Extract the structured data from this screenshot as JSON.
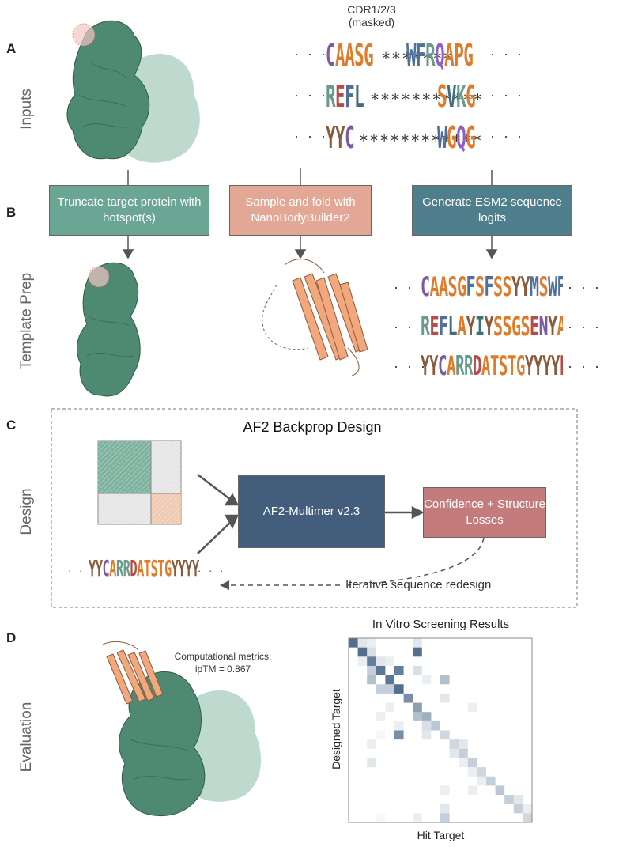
{
  "panels": {
    "a": "A",
    "b": "B",
    "c": "C",
    "d": "D"
  },
  "row_labels": {
    "inputs": "Inputs",
    "template": "Template Prep",
    "design": "Design",
    "evaluation": "Evaluation"
  },
  "cdr_label": {
    "line1": "CDR1/2/3",
    "line2": "(masked)"
  },
  "input_sequences": [
    {
      "left": "CAASG",
      "stars": "*******",
      "right": "WFRQAPG"
    },
    {
      "left": "REFL",
      "stars": "***********",
      "right": "SVKG"
    },
    {
      "left": "YYC",
      "stars": "************",
      "right": "WGQG"
    }
  ],
  "ellipsis": "· · ·",
  "steps": [
    {
      "label": "Truncate target protein with hotspot(s)",
      "color": "#6aa693"
    },
    {
      "label": "Sample and fold with NanoBodyBuilder2",
      "color": "#e3a796"
    },
    {
      "label": "Generate ESM2 sequence logits",
      "color": "#4f7f8c"
    }
  ],
  "logit_sequences": [
    "CAASGFSFSSYYMSWFRQAPG",
    "REFLAYIYSSGSENYADSVKG",
    "YYCARRDATSTGYYYYEVWGQG"
  ],
  "design": {
    "title": "AF2 Backprop Design",
    "model_label": "AF2-Multimer v2.3",
    "loss_label": "Confidence + Structure Losses",
    "redesign_label": "Iterative sequence redesign",
    "bottom_seq": "YYCARRDATSTGYYYYEVWGQG",
    "colors": {
      "model": "#435e7c",
      "loss": "#c47b7b"
    }
  },
  "evaluation": {
    "metrics_line1": "Computational metrics:",
    "metrics_line2": "ipTM = 0.867",
    "heatmap_title": "In Vitro Screening Results",
    "xlabel": "Hit Target",
    "ylabel": "Designed Target"
  },
  "chart_data": {
    "type": "heatmap",
    "title": "In Vitro Screening Results",
    "xlabel": "Hit Target",
    "ylabel": "Designed Target",
    "rows": 20,
    "cols": 20,
    "cells": [
      [
        0,
        0,
        0.9
      ],
      [
        0,
        1,
        0.15
      ],
      [
        0,
        2,
        0.1
      ],
      [
        0,
        7,
        0.15
      ],
      [
        1,
        1,
        0.9
      ],
      [
        1,
        2,
        0.2
      ],
      [
        1,
        7,
        0.9
      ],
      [
        2,
        2,
        0.8
      ],
      [
        2,
        1,
        0.1
      ],
      [
        2,
        3,
        0.15
      ],
      [
        2,
        4,
        0.1
      ],
      [
        3,
        3,
        0.85
      ],
      [
        3,
        5,
        0.8
      ],
      [
        3,
        2,
        0.3
      ],
      [
        3,
        7,
        0.2
      ],
      [
        4,
        4,
        0.85
      ],
      [
        4,
        2,
        0.4
      ],
      [
        4,
        10,
        0.4
      ],
      [
        4,
        8,
        0.1
      ],
      [
        5,
        5,
        0.9
      ],
      [
        5,
        3,
        0.3
      ],
      [
        5,
        4,
        0.3
      ],
      [
        6,
        6,
        0.7
      ],
      [
        6,
        10,
        0.15
      ],
      [
        7,
        7,
        0.6
      ],
      [
        7,
        4,
        0.1
      ],
      [
        7,
        13,
        0.1
      ],
      [
        8,
        7,
        0.4
      ],
      [
        8,
        8,
        0.5
      ],
      [
        8,
        3,
        0.1
      ],
      [
        9,
        9,
        0.35
      ],
      [
        9,
        8,
        0.2
      ],
      [
        9,
        5,
        0.1
      ],
      [
        10,
        10,
        0.25
      ],
      [
        10,
        3,
        0.05
      ],
      [
        10,
        5,
        0.7
      ],
      [
        10,
        8,
        0.15
      ],
      [
        11,
        11,
        0.25
      ],
      [
        11,
        12,
        0.15
      ],
      [
        11,
        2,
        0.1
      ],
      [
        12,
        12,
        0.3
      ],
      [
        12,
        11,
        0.15
      ],
      [
        13,
        13,
        0.3
      ],
      [
        13,
        12,
        0.1
      ],
      [
        13,
        2,
        0.15
      ],
      [
        14,
        14,
        0.25
      ],
      [
        14,
        13,
        0.1
      ],
      [
        15,
        15,
        0.3
      ],
      [
        15,
        14,
        0.1
      ],
      [
        16,
        16,
        0.35
      ],
      [
        16,
        10,
        0.1
      ],
      [
        16,
        13,
        0.1
      ],
      [
        17,
        17,
        0.3
      ],
      [
        17,
        18,
        0.15
      ],
      [
        18,
        18,
        0.3
      ],
      [
        18,
        10,
        0.15
      ],
      [
        18,
        19,
        0.1
      ],
      [
        19,
        19,
        0.25
      ],
      [
        19,
        3,
        0.05
      ],
      [
        19,
        7,
        0.1
      ],
      [
        19,
        10,
        0.3
      ]
    ]
  }
}
